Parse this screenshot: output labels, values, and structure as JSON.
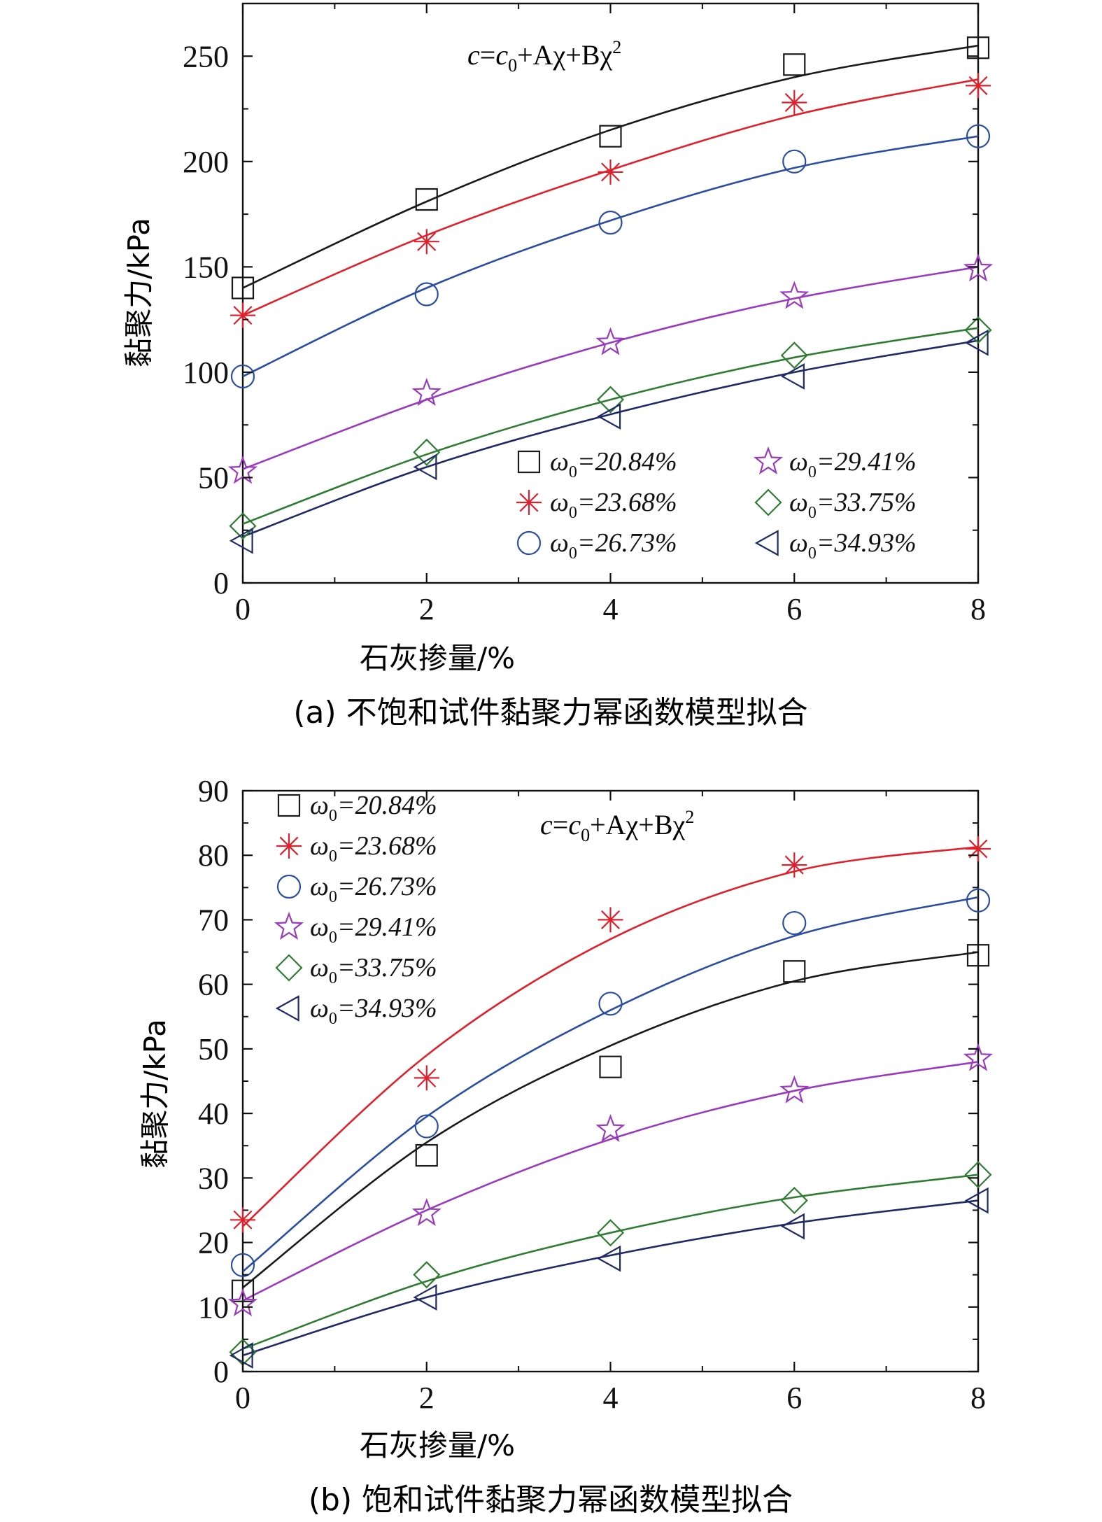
{
  "chart_data": [
    {
      "type": "scatter",
      "panel": "a",
      "formula": {
        "c": "c",
        "eq": "=",
        "c0": "c",
        "c0_sub": "0",
        "rest": "+Aχ+Bχ",
        "sup": "2"
      },
      "xlabel": "石灰掺量/%",
      "ylabel": "黏聚力/kPa",
      "caption": "(a) 不饱和试件黏聚力幂函数模型拟合",
      "xlim": [
        0,
        8
      ],
      "ylim": [
        0,
        275
      ],
      "xticks": [
        0,
        2,
        4,
        6,
        8
      ],
      "yticks": [
        0,
        50,
        100,
        150,
        200,
        250
      ],
      "legend_position": "lower-right",
      "x": [
        0,
        2,
        4,
        6,
        8
      ],
      "series": [
        {
          "name_sym": "ω",
          "name_sub": "0",
          "name_val": "=20.84%",
          "marker": "square",
          "color": "#1a1a1a",
          "values": [
            140,
            182,
            212,
            246,
            254
          ],
          "fit": [
            140,
            181,
            215,
            240,
            255
          ]
        },
        {
          "name_sym": "ω",
          "name_sub": "0",
          "name_val": "=23.68%",
          "marker": "asterisk",
          "color": "#e0202a",
          "values": [
            127,
            162,
            195,
            228,
            236
          ],
          "fit": [
            127,
            165,
            196,
            222,
            239
          ]
        },
        {
          "name_sym": "ω",
          "name_sub": "0",
          "name_val": "=26.73%",
          "marker": "circle",
          "color": "#2b4ea2",
          "values": [
            98,
            137,
            171,
            200,
            212
          ],
          "fit": [
            98,
            140,
            172,
            197,
            212
          ]
        },
        {
          "name_sym": "ω",
          "name_sub": "0",
          "name_val": "=29.41%",
          "marker": "star",
          "color": "#9a3bbd",
          "values": [
            53,
            90,
            114,
            136,
            149
          ],
          "fit": [
            54,
            87,
            114,
            135,
            150
          ]
        },
        {
          "name_sym": "ω",
          "name_sub": "0",
          "name_val": "=33.75%",
          "marker": "diamond",
          "color": "#2e7d32",
          "values": [
            27,
            62,
            87,
            108,
            120
          ],
          "fit": [
            28,
            61,
            87,
            107,
            121
          ]
        },
        {
          "name_sym": "ω",
          "name_sub": "0",
          "name_val": "=34.93%",
          "marker": "triangle-left",
          "color": "#1f2a66",
          "values": [
            20,
            55,
            79,
            98,
            114
          ],
          "fit": [
            22,
            55,
            80,
            100,
            115
          ]
        }
      ]
    },
    {
      "type": "scatter",
      "panel": "b",
      "formula": {
        "c": "c",
        "eq": "=",
        "c0": "c",
        "c0_sub": "0",
        "rest": "+Aχ+Bχ",
        "sup": "2"
      },
      "xlabel": "石灰掺量/%",
      "ylabel": "黏聚力/kPa",
      "caption": "(b) 饱和试件黏聚力幂函数模型拟合",
      "xlim": [
        0,
        8
      ],
      "ylim": [
        0,
        90
      ],
      "xticks": [
        0,
        2,
        4,
        6,
        8
      ],
      "yticks": [
        0,
        10,
        20,
        30,
        40,
        50,
        60,
        70,
        80,
        90
      ],
      "legend_position": "top-left",
      "x": [
        0,
        2,
        4,
        6,
        8
      ],
      "series": [
        {
          "name_sym": "ω",
          "name_sub": "0",
          "name_val": "=20.84%",
          "marker": "square",
          "color": "#1a1a1a",
          "values": [
            12.5,
            33.5,
            47.2,
            62.0,
            64.5
          ],
          "fit": [
            13.0,
            35.5,
            50.5,
            60.5,
            65.0
          ]
        },
        {
          "name_sym": "ω",
          "name_sub": "0",
          "name_val": "=23.68%",
          "marker": "asterisk",
          "color": "#e0202a",
          "values": [
            23.5,
            45.5,
            70.0,
            78.5,
            81.0
          ],
          "fit": [
            22.5,
            49.0,
            67.0,
            77.5,
            81.3
          ]
        },
        {
          "name_sym": "ω",
          "name_sub": "0",
          "name_val": "=26.73%",
          "marker": "circle",
          "color": "#2b4ea2",
          "values": [
            16.5,
            38.0,
            57.0,
            69.5,
            73.0
          ],
          "fit": [
            15.5,
            39.5,
            56.0,
            67.5,
            73.5
          ]
        },
        {
          "name_sym": "ω",
          "name_sub": "0",
          "name_val": "=29.41%",
          "marker": "star",
          "color": "#9a3bbd",
          "values": [
            10.5,
            24.5,
            37.5,
            43.5,
            48.5
          ],
          "fit": [
            11.0,
            25.0,
            36.0,
            43.5,
            48.0
          ]
        },
        {
          "name_sym": "ω",
          "name_sub": "0",
          "name_val": "=33.75%",
          "marker": "diamond",
          "color": "#2e7d32",
          "values": [
            3.0,
            15.0,
            21.5,
            26.5,
            30.5
          ],
          "fit": [
            3.5,
            14.0,
            21.5,
            27.0,
            30.5
          ]
        },
        {
          "name_sym": "ω",
          "name_sub": "0",
          "name_val": "=34.93%",
          "marker": "triangle-left",
          "color": "#1f2a66",
          "values": [
            2.5,
            11.5,
            17.5,
            22.5,
            26.5
          ],
          "fit": [
            2.5,
            11.5,
            18.0,
            23.0,
            26.5
          ]
        }
      ]
    }
  ]
}
